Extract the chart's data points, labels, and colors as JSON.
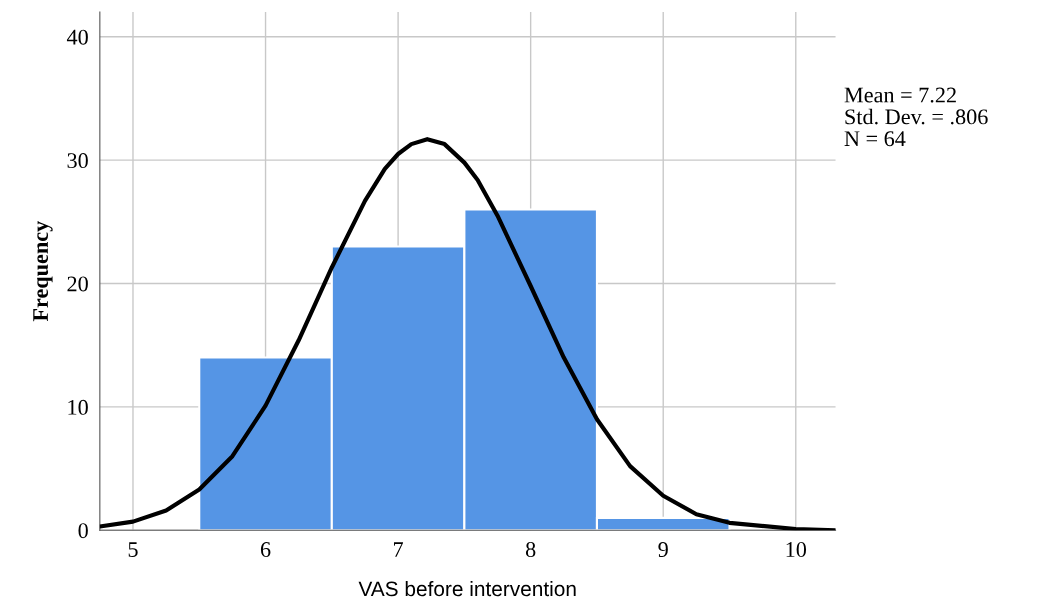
{
  "chart_data": {
    "type": "histogram",
    "xlabel": "VAS before intervention",
    "ylabel": "Frequency",
    "bins": [
      5.5,
      6.5,
      7.5,
      8.5,
      9.5
    ],
    "values": [
      14,
      23,
      26,
      1
    ],
    "color": "#5595e5",
    "series": [
      {
        "type": "line",
        "color": "#000000",
        "x": [
          4.75,
          5,
          5.25,
          5.5,
          5.75,
          6,
          6.25,
          6.5,
          6.75,
          6.9,
          7,
          7.1,
          7.22,
          7.35,
          7.5,
          7.6,
          7.75,
          8,
          8.25,
          8.5,
          8.75,
          9,
          9.25,
          9.5,
          10,
          10.3
        ],
        "values": [
          0.3,
          0.7,
          1.6,
          3.3,
          6.0,
          10.1,
          15.4,
          21.3,
          26.7,
          29.3,
          30.5,
          31.3,
          31.7,
          31.3,
          29.8,
          28.4,
          25.5,
          19.8,
          14.0,
          9.0,
          5.2,
          2.8,
          1.3,
          0.6,
          0.1,
          0.0
        ]
      }
    ],
    "xlim": [
      4.75,
      10.3
    ],
    "xticks": [
      5,
      6,
      7,
      8,
      9,
      10
    ],
    "ylim": [
      0,
      42
    ],
    "yticks": [
      0,
      10,
      20,
      30,
      40
    ],
    "grid": true,
    "marker": "none",
    "line_style": "solid",
    "annotations": [
      "Mean = 7.22",
      "Std. Dev. = .806",
      "N = 64"
    ]
  }
}
